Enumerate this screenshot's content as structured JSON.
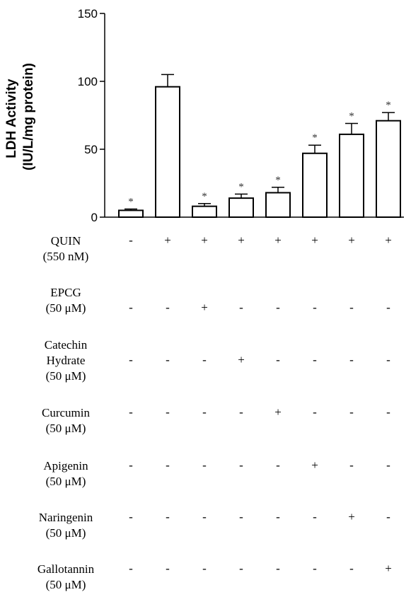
{
  "chart_data": {
    "type": "bar",
    "ylabel_lines": [
      "LDH Activity",
      "(IU/L/mg protein)"
    ],
    "ylim": [
      0,
      150
    ],
    "yticks": [
      "0",
      "50",
      "100",
      "150"
    ],
    "bars": [
      {
        "value": 5,
        "error": 1,
        "star": "*"
      },
      {
        "value": 96,
        "error": 9,
        "star": ""
      },
      {
        "value": 8,
        "error": 2,
        "star": "*"
      },
      {
        "value": 14,
        "error": 3,
        "star": "*"
      },
      {
        "value": 18,
        "error": 4,
        "star": "*"
      },
      {
        "value": 47,
        "error": 6,
        "star": "*"
      },
      {
        "value": 61,
        "error": 8,
        "star": "*"
      },
      {
        "value": 71,
        "error": 6,
        "star": "*"
      }
    ],
    "grid": false,
    "legend": "none"
  },
  "conditions": [
    {
      "label": [
        "QUIN",
        "(550 nM)"
      ],
      "signs": [
        "-",
        "+",
        "+",
        "+",
        "+",
        "+",
        "+",
        "+"
      ]
    },
    {
      "label": [
        "EPCG",
        "(50 μM)"
      ],
      "signs": [
        "-",
        "-",
        "+",
        "-",
        "-",
        "-",
        "-",
        "-"
      ]
    },
    {
      "label": [
        "Catechin",
        "Hydrate",
        "(50 μM)"
      ],
      "signs": [
        "-",
        "-",
        "-",
        "+",
        "-",
        "-",
        "-",
        "-"
      ]
    },
    {
      "label": [
        "Curcumin",
        "(50 μM)"
      ],
      "signs": [
        "-",
        "-",
        "-",
        "-",
        "+",
        "-",
        "-",
        "-"
      ]
    },
    {
      "label": [
        "Apigenin",
        "(50 μM)"
      ],
      "signs": [
        "-",
        "-",
        "-",
        "-",
        "-",
        "+",
        "-",
        "-"
      ]
    },
    {
      "label": [
        "Naringenin",
        "(50 μM)"
      ],
      "signs": [
        "-",
        "-",
        "-",
        "-",
        "-",
        "-",
        "+",
        "-"
      ]
    },
    {
      "label": [
        "Gallotannin",
        "(50 μM)"
      ],
      "signs": [
        "-",
        "-",
        "-",
        "-",
        "-",
        "-",
        "-",
        "+"
      ]
    }
  ]
}
